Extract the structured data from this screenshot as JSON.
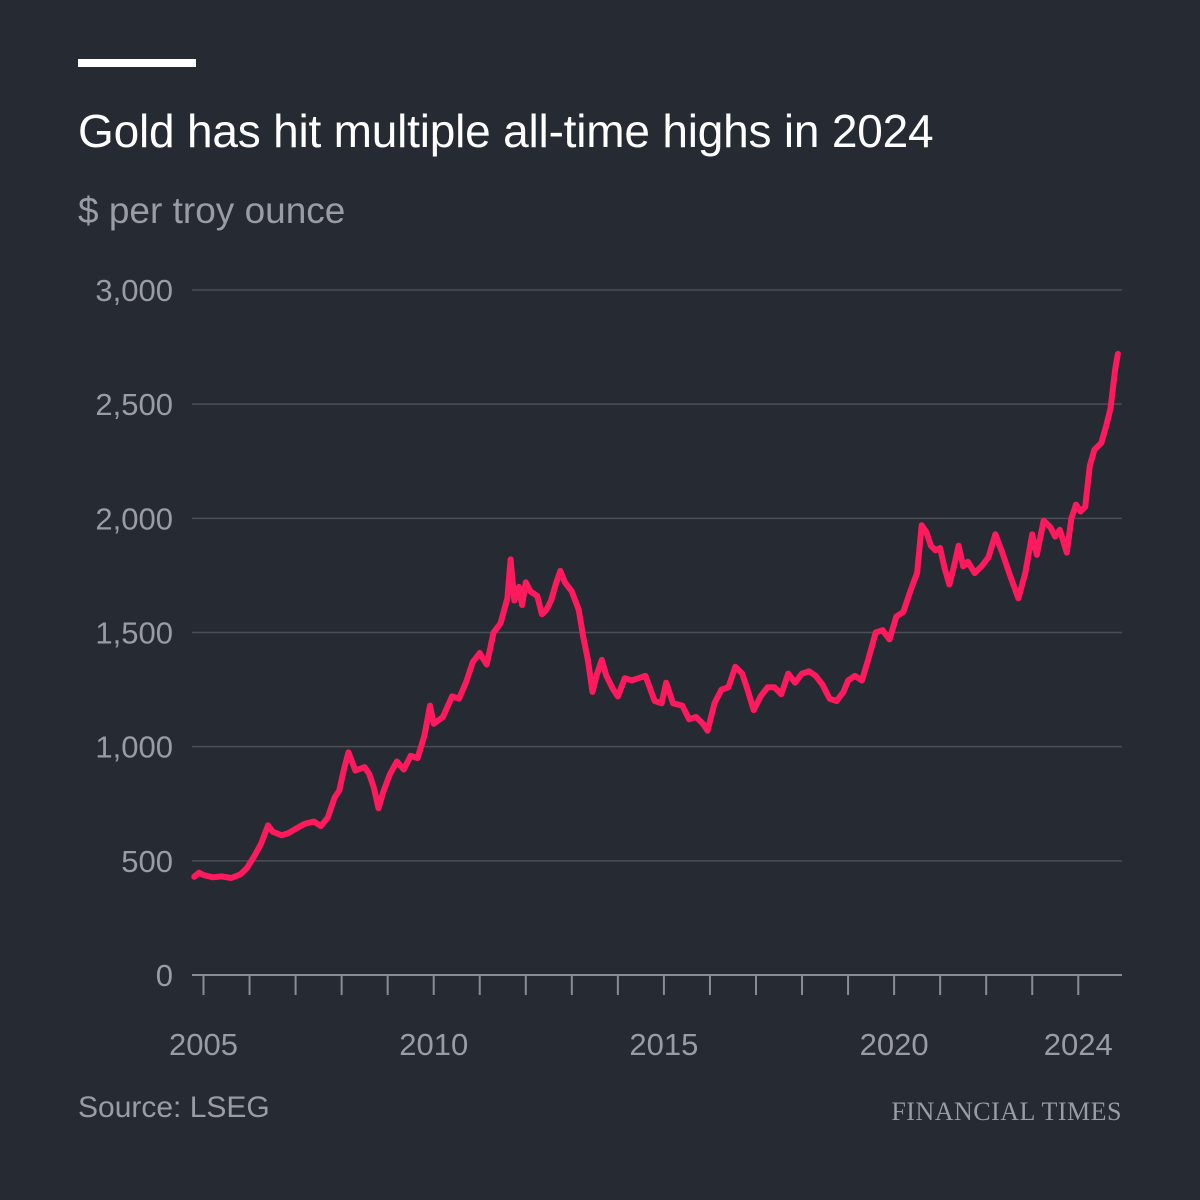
{
  "header": {
    "title": "Gold has hit multiple all-time highs in 2024",
    "subtitle": "$ per troy ounce"
  },
  "footer": {
    "source": "Source: LSEG",
    "brand": "FINANCIAL TIMES"
  },
  "colors": {
    "background": "#262a33",
    "line": "#ff1a5e",
    "grid": "#4a4e57",
    "text_muted": "#9a9ca3",
    "title": "#ffffff"
  },
  "chart_data": {
    "type": "line",
    "title": "Gold has hit multiple all-time highs in 2024",
    "subtitle": "$ per troy ounce",
    "ylim": [
      0,
      3000
    ],
    "xlim": [
      2004.75,
      2024.95
    ],
    "grid": true,
    "yticks": [
      0,
      500,
      1000,
      1500,
      2000,
      2500,
      3000
    ],
    "ytick_labels": [
      "0",
      "500",
      "1,000",
      "1,500",
      "2,000",
      "2,500",
      "3,000"
    ],
    "xticks": [
      2005,
      2010,
      2015,
      2020,
      2024
    ],
    "xtick_labels": [
      "2005",
      "2010",
      "2015",
      "2020",
      "2024"
    ],
    "series": [
      {
        "values": [
          [
            2004.8,
            430
          ],
          [
            2004.9,
            448
          ],
          [
            2005.0,
            438
          ],
          [
            2005.2,
            428
          ],
          [
            2005.4,
            432
          ],
          [
            2005.6,
            425
          ],
          [
            2005.8,
            440
          ],
          [
            2005.95,
            470
          ],
          [
            2006.1,
            520
          ],
          [
            2006.25,
            575
          ],
          [
            2006.4,
            655
          ],
          [
            2006.5,
            628
          ],
          [
            2006.7,
            612
          ],
          [
            2006.85,
            622
          ],
          [
            2007.0,
            640
          ],
          [
            2007.2,
            662
          ],
          [
            2007.4,
            672
          ],
          [
            2007.55,
            652
          ],
          [
            2007.7,
            690
          ],
          [
            2007.85,
            778
          ],
          [
            2007.95,
            808
          ],
          [
            2008.05,
            900
          ],
          [
            2008.15,
            975
          ],
          [
            2008.3,
            895
          ],
          [
            2008.5,
            910
          ],
          [
            2008.6,
            880
          ],
          [
            2008.7,
            820
          ],
          [
            2008.8,
            730
          ],
          [
            2008.9,
            800
          ],
          [
            2009.05,
            880
          ],
          [
            2009.2,
            935
          ],
          [
            2009.35,
            900
          ],
          [
            2009.5,
            960
          ],
          [
            2009.65,
            950
          ],
          [
            2009.8,
            1050
          ],
          [
            2009.92,
            1180
          ],
          [
            2010.0,
            1100
          ],
          [
            2010.2,
            1130
          ],
          [
            2010.4,
            1220
          ],
          [
            2010.55,
            1210
          ],
          [
            2010.7,
            1280
          ],
          [
            2010.85,
            1370
          ],
          [
            2011.0,
            1410
          ],
          [
            2011.15,
            1360
          ],
          [
            2011.3,
            1500
          ],
          [
            2011.45,
            1540
          ],
          [
            2011.6,
            1650
          ],
          [
            2011.67,
            1820
          ],
          [
            2011.75,
            1640
          ],
          [
            2011.85,
            1700
          ],
          [
            2011.92,
            1620
          ],
          [
            2012.0,
            1720
          ],
          [
            2012.1,
            1680
          ],
          [
            2012.25,
            1660
          ],
          [
            2012.35,
            1580
          ],
          [
            2012.45,
            1600
          ],
          [
            2012.55,
            1640
          ],
          [
            2012.65,
            1710
          ],
          [
            2012.75,
            1770
          ],
          [
            2012.85,
            1720
          ],
          [
            2013.0,
            1680
          ],
          [
            2013.15,
            1600
          ],
          [
            2013.25,
            1480
          ],
          [
            2013.35,
            1380
          ],
          [
            2013.45,
            1240
          ],
          [
            2013.55,
            1320
          ],
          [
            2013.65,
            1380
          ],
          [
            2013.75,
            1310
          ],
          [
            2013.9,
            1250
          ],
          [
            2014.0,
            1220
          ],
          [
            2014.15,
            1300
          ],
          [
            2014.3,
            1290
          ],
          [
            2014.45,
            1300
          ],
          [
            2014.6,
            1310
          ],
          [
            2014.8,
            1200
          ],
          [
            2014.95,
            1190
          ],
          [
            2015.05,
            1280
          ],
          [
            2015.2,
            1190
          ],
          [
            2015.4,
            1180
          ],
          [
            2015.55,
            1120
          ],
          [
            2015.7,
            1130
          ],
          [
            2015.85,
            1100
          ],
          [
            2015.95,
            1070
          ],
          [
            2016.1,
            1190
          ],
          [
            2016.25,
            1250
          ],
          [
            2016.4,
            1260
          ],
          [
            2016.55,
            1350
          ],
          [
            2016.7,
            1320
          ],
          [
            2016.8,
            1260
          ],
          [
            2016.95,
            1160
          ],
          [
            2017.1,
            1220
          ],
          [
            2017.25,
            1260
          ],
          [
            2017.4,
            1260
          ],
          [
            2017.55,
            1230
          ],
          [
            2017.7,
            1320
          ],
          [
            2017.85,
            1280
          ],
          [
            2018.0,
            1320
          ],
          [
            2018.15,
            1330
          ],
          [
            2018.3,
            1310
          ],
          [
            2018.45,
            1270
          ],
          [
            2018.6,
            1210
          ],
          [
            2018.75,
            1200
          ],
          [
            2018.9,
            1240
          ],
          [
            2019.0,
            1290
          ],
          [
            2019.15,
            1310
          ],
          [
            2019.3,
            1290
          ],
          [
            2019.45,
            1390
          ],
          [
            2019.6,
            1500
          ],
          [
            2019.75,
            1510
          ],
          [
            2019.9,
            1470
          ],
          [
            2020.05,
            1570
          ],
          [
            2020.2,
            1590
          ],
          [
            2020.35,
            1680
          ],
          [
            2020.5,
            1760
          ],
          [
            2020.6,
            1970
          ],
          [
            2020.7,
            1940
          ],
          [
            2020.8,
            1880
          ],
          [
            2020.9,
            1860
          ],
          [
            2021.0,
            1870
          ],
          [
            2021.1,
            1780
          ],
          [
            2021.2,
            1710
          ],
          [
            2021.3,
            1790
          ],
          [
            2021.4,
            1880
          ],
          [
            2021.5,
            1790
          ],
          [
            2021.6,
            1810
          ],
          [
            2021.75,
            1760
          ],
          [
            2021.9,
            1790
          ],
          [
            2022.05,
            1830
          ],
          [
            2022.2,
            1930
          ],
          [
            2022.35,
            1850
          ],
          [
            2022.5,
            1760
          ],
          [
            2022.7,
            1650
          ],
          [
            2022.85,
            1760
          ],
          [
            2023.0,
            1930
          ],
          [
            2023.1,
            1840
          ],
          [
            2023.25,
            1990
          ],
          [
            2023.4,
            1960
          ],
          [
            2023.5,
            1920
          ],
          [
            2023.6,
            1950
          ],
          [
            2023.75,
            1850
          ],
          [
            2023.85,
            2000
          ],
          [
            2023.95,
            2060
          ],
          [
            2024.05,
            2030
          ],
          [
            2024.15,
            2050
          ],
          [
            2024.25,
            2230
          ],
          [
            2024.35,
            2300
          ],
          [
            2024.5,
            2330
          ],
          [
            2024.6,
            2400
          ],
          [
            2024.7,
            2480
          ],
          [
            2024.8,
            2650
          ],
          [
            2024.86,
            2720
          ]
        ]
      }
    ]
  }
}
